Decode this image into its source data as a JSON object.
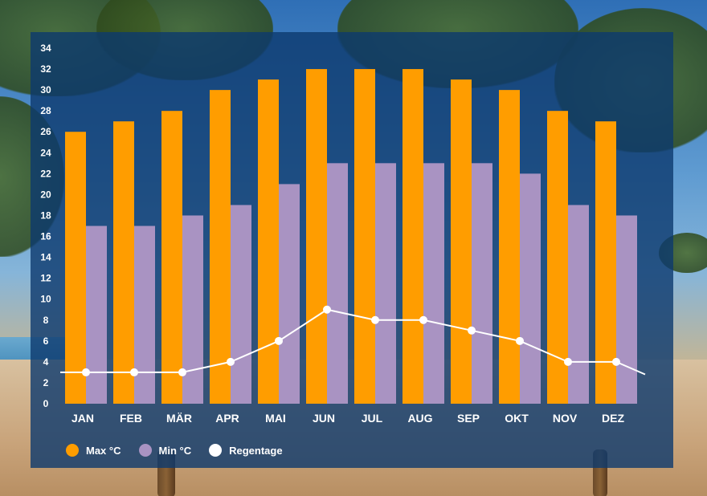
{
  "chart_data": {
    "type": "bar",
    "categories": [
      "JAN",
      "FEB",
      "MÄR",
      "APR",
      "MAI",
      "JUN",
      "JUL",
      "AUG",
      "SEP",
      "OKT",
      "NOV",
      "DEZ"
    ],
    "series": [
      {
        "name": "Max °C",
        "type": "bar",
        "color": "#ff9d00",
        "values": [
          26,
          27,
          28,
          30,
          31,
          32,
          32,
          32,
          31,
          30,
          28,
          27
        ]
      },
      {
        "name": "Min °C",
        "type": "bar",
        "color": "#a993c2",
        "values": [
          17,
          17,
          18,
          19,
          21,
          23,
          23,
          23,
          23,
          22,
          19,
          18
        ]
      },
      {
        "name": "Regentage",
        "type": "line",
        "color": "#ffffff",
        "values": [
          3,
          3,
          3,
          4,
          6,
          9,
          8,
          8,
          7,
          6,
          4,
          4
        ]
      }
    ],
    "yticks": [
      0,
      2,
      4,
      6,
      8,
      10,
      12,
      14,
      16,
      18,
      20,
      22,
      24,
      26,
      28,
      30,
      32,
      34
    ],
    "ylim": [
      0,
      34
    ],
    "grid": false,
    "legend_position": "bottom-left"
  }
}
